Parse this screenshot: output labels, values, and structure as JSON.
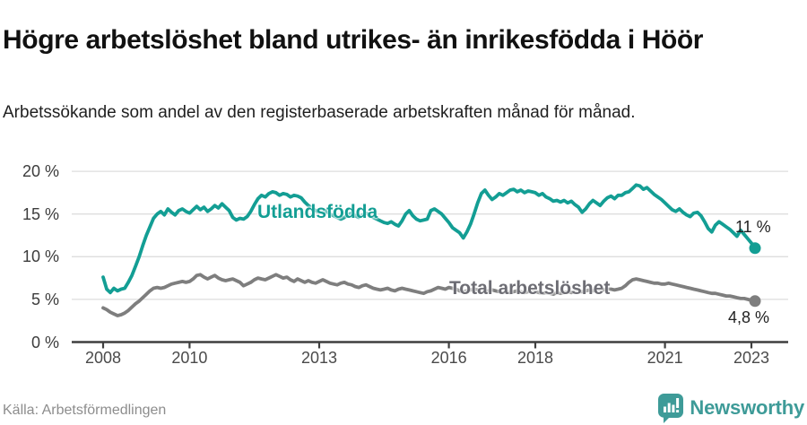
{
  "header": {
    "title": "Högre arbetslöshet bland utrikes- än inrikesfödda i Höör",
    "subtitle": "Arbetssökande som andel av den registerbaserade arbetskraften månad för månad."
  },
  "colors": {
    "accent_teal": "#139e94",
    "line_gray": "#7e7e7e",
    "label_gray": "#6d6d74",
    "grid": "#dedede",
    "axis": "#3f3f3f",
    "brand_teal": "#3e9b98"
  },
  "chart_data": {
    "type": "line",
    "title": "Högre arbetslöshet bland utrikes- än inrikesfödda i Höör",
    "xlabel": "",
    "ylabel": "Arbetssökande som andel av den registerbaserade arbetskraften",
    "x_unit": "monthly, 2008-01 to 2023-02",
    "ylim": [
      0,
      20
    ],
    "grid": true,
    "legend_position": "inline-labels",
    "yticks": [
      {
        "v": 0,
        "label": "0 %"
      },
      {
        "v": 5,
        "label": "5 %"
      },
      {
        "v": 10,
        "label": "10 %"
      },
      {
        "v": 15,
        "label": "15 %"
      },
      {
        "v": 20,
        "label": "20 %"
      }
    ],
    "xticks": [
      {
        "v": 2008,
        "label": "2008"
      },
      {
        "v": 2010,
        "label": "2010"
      },
      {
        "v": 2013,
        "label": "2013"
      },
      {
        "v": 2016,
        "label": "2016"
      },
      {
        "v": 2018,
        "label": "2018"
      },
      {
        "v": 2021,
        "label": "2021"
      },
      {
        "v": 2023,
        "label": "2023"
      }
    ],
    "series": [
      {
        "name": "Utlandsfödda",
        "color": "#139e94",
        "end_label": "11 %",
        "end_value": 11.0,
        "values": [
          7.6,
          6.2,
          5.8,
          6.3,
          6.0,
          6.2,
          6.3,
          7.0,
          7.8,
          8.9,
          10.0,
          11.3,
          12.5,
          13.5,
          14.5,
          15.0,
          15.3,
          14.9,
          15.6,
          15.2,
          14.9,
          15.4,
          15.6,
          15.3,
          15.1,
          15.5,
          15.9,
          15.5,
          15.8,
          15.3,
          15.6,
          16.0,
          15.7,
          16.2,
          15.8,
          15.4,
          14.6,
          14.3,
          14.5,
          14.4,
          14.7,
          15.3,
          16.1,
          16.8,
          17.2,
          17.0,
          17.4,
          17.6,
          17.5,
          17.2,
          17.4,
          17.3,
          17.0,
          17.2,
          17.1,
          16.9,
          16.4,
          16.0,
          15.7,
          15.4,
          15.2,
          15.5,
          15.3,
          15.0,
          14.8,
          14.6,
          14.4,
          14.6,
          14.9,
          15.1,
          14.8,
          14.6,
          14.9,
          15.1,
          14.9,
          14.6,
          14.4,
          14.2,
          14.0,
          13.9,
          14.1,
          13.8,
          13.6,
          14.2,
          15.0,
          15.4,
          14.8,
          14.4,
          14.2,
          14.3,
          14.4,
          15.4,
          15.6,
          15.3,
          15.0,
          14.5,
          14.0,
          13.4,
          13.1,
          12.8,
          12.2,
          12.9,
          13.8,
          15.0,
          16.3,
          17.4,
          17.8,
          17.2,
          16.7,
          17.0,
          17.4,
          17.2,
          17.5,
          17.8,
          17.9,
          17.6,
          17.8,
          17.5,
          17.7,
          17.6,
          17.5,
          17.2,
          17.4,
          17.0,
          16.8,
          16.5,
          16.6,
          16.4,
          16.6,
          16.3,
          16.5,
          16.1,
          15.8,
          15.2,
          15.6,
          16.2,
          16.6,
          16.3,
          16.0,
          16.5,
          16.9,
          17.1,
          16.8,
          17.2,
          17.2,
          17.5,
          17.6,
          18.0,
          18.4,
          18.3,
          17.9,
          18.1,
          17.7,
          17.3,
          17.0,
          16.7,
          16.3,
          15.9,
          15.5,
          15.3,
          15.6,
          15.2,
          14.9,
          14.7,
          15.1,
          15.2,
          14.8,
          14.1,
          13.3,
          12.9,
          13.7,
          14.1,
          13.8,
          13.5,
          13.2,
          12.8,
          12.4,
          13.1,
          12.6,
          12.1,
          11.6,
          11.0
        ]
      },
      {
        "name": "Total arbetslöshet",
        "color": "#7e7e7e",
        "end_label": "4,8 %",
        "end_value": 4.8,
        "values": [
          4.0,
          3.8,
          3.5,
          3.3,
          3.1,
          3.2,
          3.4,
          3.7,
          4.1,
          4.5,
          4.8,
          5.2,
          5.6,
          6.0,
          6.3,
          6.4,
          6.3,
          6.4,
          6.6,
          6.8,
          6.9,
          7.0,
          7.1,
          7.0,
          7.1,
          7.4,
          7.8,
          7.9,
          7.6,
          7.4,
          7.6,
          7.8,
          7.5,
          7.3,
          7.2,
          7.3,
          7.4,
          7.2,
          7.0,
          6.6,
          6.8,
          7.0,
          7.3,
          7.5,
          7.4,
          7.3,
          7.5,
          7.7,
          7.9,
          7.7,
          7.5,
          7.6,
          7.3,
          7.1,
          7.4,
          7.2,
          7.0,
          7.2,
          7.0,
          6.9,
          7.1,
          7.3,
          7.1,
          6.9,
          6.8,
          6.7,
          6.9,
          7.0,
          6.8,
          6.7,
          6.5,
          6.4,
          6.6,
          6.7,
          6.5,
          6.3,
          6.2,
          6.1,
          6.2,
          6.3,
          6.1,
          6.0,
          6.2,
          6.3,
          6.2,
          6.1,
          6.0,
          5.9,
          5.8,
          5.7,
          5.9,
          6.0,
          6.2,
          6.4,
          6.3,
          6.2,
          6.4,
          6.3,
          6.2,
          6.0,
          5.9,
          6.0,
          6.1,
          6.2,
          6.1,
          6.0,
          5.9,
          6.0,
          6.1,
          6.0,
          5.9,
          5.8,
          5.9,
          5.8,
          5.9,
          6.0,
          5.9,
          5.8,
          5.9,
          6.0,
          5.9,
          5.8,
          5.7,
          5.8,
          5.7,
          5.6,
          5.8,
          5.7,
          5.8,
          5.9,
          5.8,
          5.9,
          5.9,
          5.9,
          6.0,
          6.1,
          6.0,
          6.1,
          6.2,
          6.1,
          6.2,
          6.2,
          6.1,
          6.2,
          6.3,
          6.6,
          7.0,
          7.3,
          7.4,
          7.3,
          7.2,
          7.1,
          7.0,
          6.9,
          6.9,
          6.8,
          6.8,
          6.9,
          6.8,
          6.7,
          6.6,
          6.5,
          6.4,
          6.3,
          6.2,
          6.1,
          6.0,
          5.9,
          5.8,
          5.7,
          5.7,
          5.6,
          5.5,
          5.4,
          5.4,
          5.3,
          5.2,
          5.1,
          5.1,
          5.0,
          4.9,
          4.8
        ]
      }
    ]
  },
  "footer": {
    "source": "Källa: Arbetsförmedlingen",
    "brand": "Newsworthy"
  }
}
